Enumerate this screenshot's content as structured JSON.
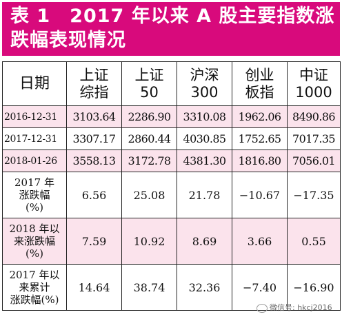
{
  "title": {
    "line1": "表 1　2017 年以来 A 股主要指数涨",
    "line2": "跌幅表现情况"
  },
  "table": {
    "headers": [
      {
        "l1": "日期",
        "l2": ""
      },
      {
        "l1": "上证",
        "l2": "综指"
      },
      {
        "l1": "上证",
        "l2": "50"
      },
      {
        "l1": "沪深",
        "l2": "300"
      },
      {
        "l1": "创业",
        "l2": "板指"
      },
      {
        "l1": "中证",
        "l2": "1000"
      }
    ],
    "rows": [
      {
        "label": "2016-12-31",
        "values": [
          "3103.64",
          "2286.90",
          "3310.08",
          "1962.06",
          "8490.86"
        ]
      },
      {
        "label": "2017-12-31",
        "values": [
          "3307.17",
          "2860.44",
          "4030.85",
          "1752.65",
          "7017.35"
        ]
      },
      {
        "label": "2018-01-26",
        "values": [
          "3558.13",
          "3172.78",
          "4381.30",
          "1816.80",
          "7056.01"
        ]
      },
      {
        "l1": "2017 年",
        "l2": "涨跌幅",
        "l3": "(%)",
        "values": [
          "6.56",
          "25.08",
          "21.78",
          "−10.67",
          "−17.35"
        ]
      },
      {
        "l1": "2018 年以",
        "l2": "来涨跌幅",
        "l3": "(%)",
        "values": [
          "7.59",
          "10.92",
          "8.69",
          "3.66",
          "0.55"
        ]
      },
      {
        "l1": "2017 年以",
        "l2": "来累计",
        "l3": "涨跌幅(%)",
        "values": [
          "14.64",
          "38.74",
          "32.36",
          "−7.40",
          "−16.90"
        ]
      }
    ]
  },
  "watermark": "微信号: hkcj2016"
}
